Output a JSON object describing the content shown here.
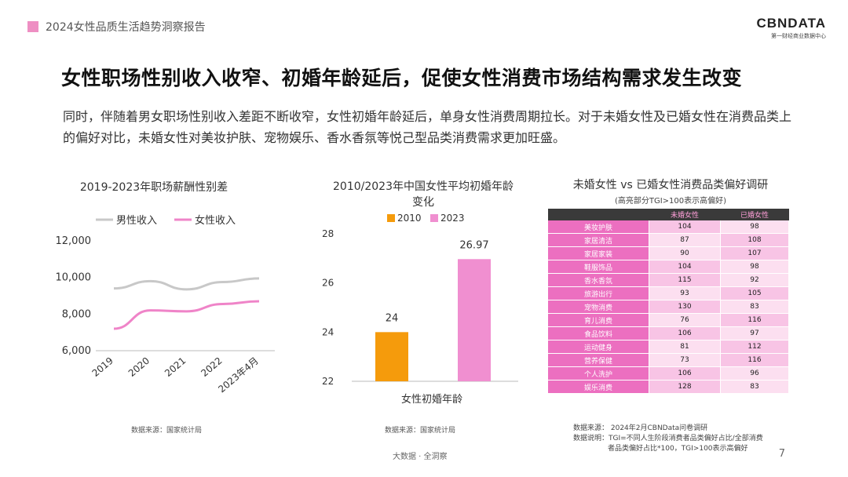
{
  "header": {
    "report_title": "2024女性品质生活趋势洞察报告"
  },
  "logo": {
    "main": "CBNDATA",
    "sub": "第一财经商业数据中心"
  },
  "page_title": "女性职场性别收入收窄、初婚年龄延后，促使女性消费市场结构需求发生改变",
  "paragraph": "同时，伴随着男女职场性别收入差距不断收窄，女性初婚年龄延后，单身女性消费周期拉长。对于未婚女性及已婚女性在消费品类上的偏好对比，未婚女性对美妆护肤、宠物娱乐、香水香氛等悦己型品类消费需求更加旺盛。",
  "chart_data": [
    {
      "type": "line",
      "title": "2019-2023年职场薪酬性别差",
      "categories": [
        "2019",
        "2020",
        "2021",
        "2022",
        "2023年4月"
      ],
      "series": [
        {
          "name": "男性收入",
          "values": [
            9400,
            9800,
            9350,
            9750,
            9950
          ],
          "color": "#c8c8c8"
        },
        {
          "name": "女性收入",
          "values": [
            7200,
            8200,
            8150,
            8550,
            8700
          ],
          "color": "#ef84c8"
        }
      ],
      "yticks": [
        "12,000",
        "10,000",
        "8,000",
        "6,000"
      ],
      "ylim": [
        6000,
        12000
      ],
      "source": "数据来源：国家统计局"
    },
    {
      "type": "bar",
      "title": "2010/2023年中国女性平均初婚年龄变化",
      "categories": [
        "女性初婚年龄"
      ],
      "series": [
        {
          "name": "2010",
          "values": [
            24
          ],
          "label": "24",
          "color": "#f59b0c"
        },
        {
          "name": "2023",
          "values": [
            26.97
          ],
          "label": "26.97",
          "color": "#f08fd0"
        }
      ],
      "yticks": [
        "28",
        "26",
        "24",
        "22"
      ],
      "ylim": [
        22,
        28
      ],
      "source": "数据来源：国家统计局"
    },
    {
      "type": "table",
      "title": "未婚女性 vs 已婚女性消费品类偏好调研",
      "subtitle": "(高亮部分TGI>100表示高偏好)",
      "columns": [
        "",
        "未婚女性",
        "已婚女性"
      ],
      "rows": [
        {
          "category": "美妆护肤",
          "unmarried": "104",
          "married": "98"
        },
        {
          "category": "家居清洁",
          "unmarried": "87",
          "married": "108"
        },
        {
          "category": "家居家装",
          "unmarried": "90",
          "married": "107"
        },
        {
          "category": "鞋服饰品",
          "unmarried": "104",
          "married": "98"
        },
        {
          "category": "香水香氛",
          "unmarried": "115",
          "married": "92"
        },
        {
          "category": "旅游出行",
          "unmarried": "93",
          "married": "105"
        },
        {
          "category": "宠物消费",
          "unmarried": "130",
          "married": "83"
        },
        {
          "category": "育儿消费",
          "unmarried": "76",
          "married": "116"
        },
        {
          "category": "食品饮料",
          "unmarried": "106",
          "married": "97"
        },
        {
          "category": "运动健身",
          "unmarried": "81",
          "married": "112"
        },
        {
          "category": "营养保健",
          "unmarried": "73",
          "married": "116"
        },
        {
          "category": "个人洗护",
          "unmarried": "106",
          "married": "96"
        },
        {
          "category": "娱乐消费",
          "unmarried": "128",
          "married": "83"
        }
      ],
      "source_line1": "数据来源： 2024年2月CBNData问卷调研",
      "source_line2": "数据说明：TGI=不同人生阶段消费者品类偏好占比/全部消费",
      "source_line3": "者品类偏好占比*100，TGI>100表示高偏好"
    }
  ],
  "colors": {
    "highlight_light": "#fcdff0",
    "highlight_mid": "#f8c4e5",
    "table_header": "#3a3a3a",
    "accent_pink": "#ec6fc0"
  },
  "footer": {
    "text": "大数据 · 全洞察",
    "page_number": "7"
  }
}
